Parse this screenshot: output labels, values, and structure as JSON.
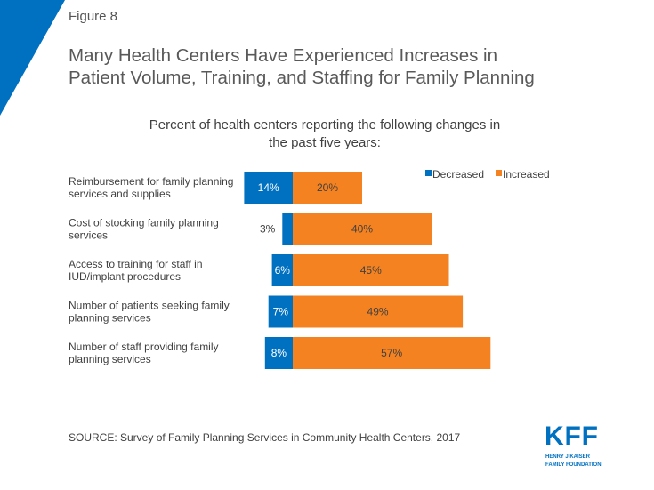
{
  "header": {
    "figure": "Figure 8",
    "title_line1": "Many Health Centers Have Experienced Increases in",
    "title_line2": "Patient Volume, Training, and Staffing for Family Planning"
  },
  "chart_data": {
    "type": "bar",
    "orientation": "horizontal-diverging",
    "title_line1": "Percent of health centers reporting the following changes in",
    "title_line2": "the past five years:",
    "categories": [
      [
        "Reimbursement for family planning",
        "services and supplies"
      ],
      [
        "Cost of stocking family planning",
        "services"
      ],
      [
        "Access to training for staff in",
        "IUD/implant procedures"
      ],
      [
        "Number of patients seeking family",
        "planning services"
      ],
      [
        "Number of staff providing family",
        "planning services"
      ]
    ],
    "series": [
      {
        "name": "Decreased",
        "color": "#0070C0",
        "values": [
          14,
          3,
          6,
          7,
          8
        ]
      },
      {
        "name": "Increased",
        "color": "#F58220",
        "values": [
          20,
          40,
          45,
          49,
          57
        ]
      }
    ],
    "legend": "top-right",
    "grid": false
  },
  "footer": {
    "source": "SOURCE: Survey of Family Planning Services in Community Health Centers, 2017"
  },
  "logo": {
    "text": "KFF",
    "line1": "HENRY J KAISER",
    "line2": "FAMILY FOUNDATION"
  },
  "colors": {
    "accent": "#0070C0"
  }
}
